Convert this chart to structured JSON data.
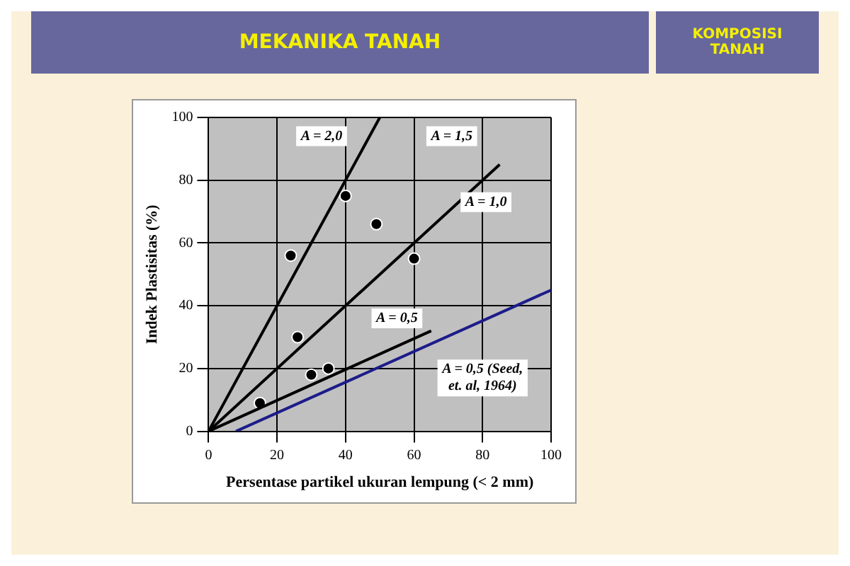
{
  "chart_data": {
    "type": "scatter",
    "title": "MEKANIKA TANAH",
    "subtitle": "KOMPOSISI TANAH",
    "xlabel": "Persentase partikel ukuran lempung (< 2 mm)",
    "ylabel": "Indek Plastisitas (%)",
    "xlim": [
      0,
      100
    ],
    "ylim": [
      0,
      100
    ],
    "xticks": [
      0,
      20,
      40,
      60,
      80,
      100
    ],
    "yticks": [
      0,
      20,
      40,
      60,
      80,
      100
    ],
    "grid": true,
    "legend": false,
    "series": [
      {
        "type": "line",
        "color": "#000000",
        "x": [
          0,
          50
        ],
        "values": [
          0,
          100
        ],
        "marker": "none",
        "line_style": "solid"
      },
      {
        "type": "line",
        "color": "#000000",
        "x": [
          0,
          85
        ],
        "values": [
          0,
          85
        ],
        "marker": "none",
        "line_style": "solid"
      },
      {
        "type": "line",
        "color": "#000000",
        "x": [
          0,
          65
        ],
        "values": [
          0,
          32
        ],
        "marker": "none",
        "line_style": "solid"
      },
      {
        "type": "line",
        "color": "#1c1c8a",
        "x": [
          8,
          100
        ],
        "values": [
          0,
          45
        ],
        "marker": "none",
        "line_style": "solid"
      },
      {
        "type": "scatter",
        "color": "#000000",
        "x": [
          15,
          24,
          26,
          30,
          35,
          40,
          49,
          60
        ],
        "values": [
          9,
          56,
          30,
          18,
          20,
          75,
          66,
          55
        ],
        "marker": "circle"
      }
    ],
    "annotations": [
      {
        "text": "A = 2,0",
        "x": 33,
        "y": 94
      },
      {
        "text": "A = 1,5",
        "x": 71,
        "y": 94
      },
      {
        "text": "A = 1,0",
        "x": 81,
        "y": 73
      },
      {
        "text": "A = 0,5",
        "x": 55,
        "y": 36
      },
      "A = 0,5 (Seed,\net. al, 1964)"
    ]
  }
}
